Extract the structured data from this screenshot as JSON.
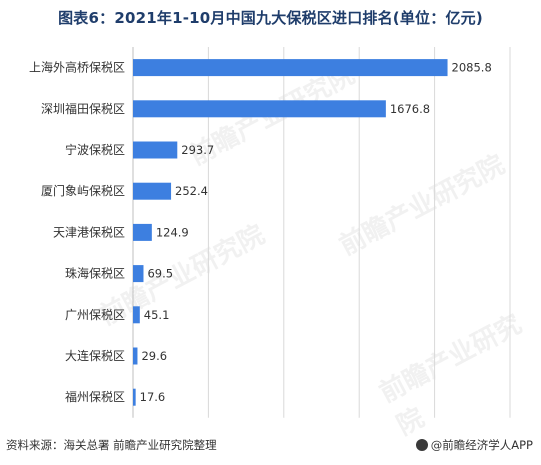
{
  "title": "图表6：2021年1-10月中国九大保税区进口排名(单位：亿元)",
  "source": "资料来源：海关总署 前瞻产业研究院整理",
  "brand": "@前瞻经济学人APP",
  "watermark": "前瞻产业研究院",
  "colors": {
    "bar": "#3d7fe0",
    "grid": "#d9d9d9",
    "axis": "#bfbfbf",
    "title": "#1f3d6b"
  },
  "chart_data": {
    "type": "bar",
    "orientation": "horizontal",
    "title": "图表6：2021年1-10月中国九大保税区进口排名(单位：亿元)",
    "xlabel": "",
    "ylabel": "",
    "xlim": [
      0,
      2500
    ],
    "grid": true,
    "categories": [
      "上海外高桥保税区",
      "深圳福田保税区",
      "宁波保税区",
      "厦门象屿保税区",
      "天津港保税区",
      "珠海保税区",
      "广州保税区",
      "大连保税区",
      "福州保税区"
    ],
    "values": [
      2085.8,
      1676.8,
      293.7,
      252.4,
      124.9,
      69.5,
      45.1,
      29.6,
      17.6
    ],
    "labels": [
      "2085.8",
      "1676.8",
      "293.7",
      "252.4",
      "124.9",
      "69.5",
      "45.1",
      "29.6",
      "17.6"
    ]
  }
}
